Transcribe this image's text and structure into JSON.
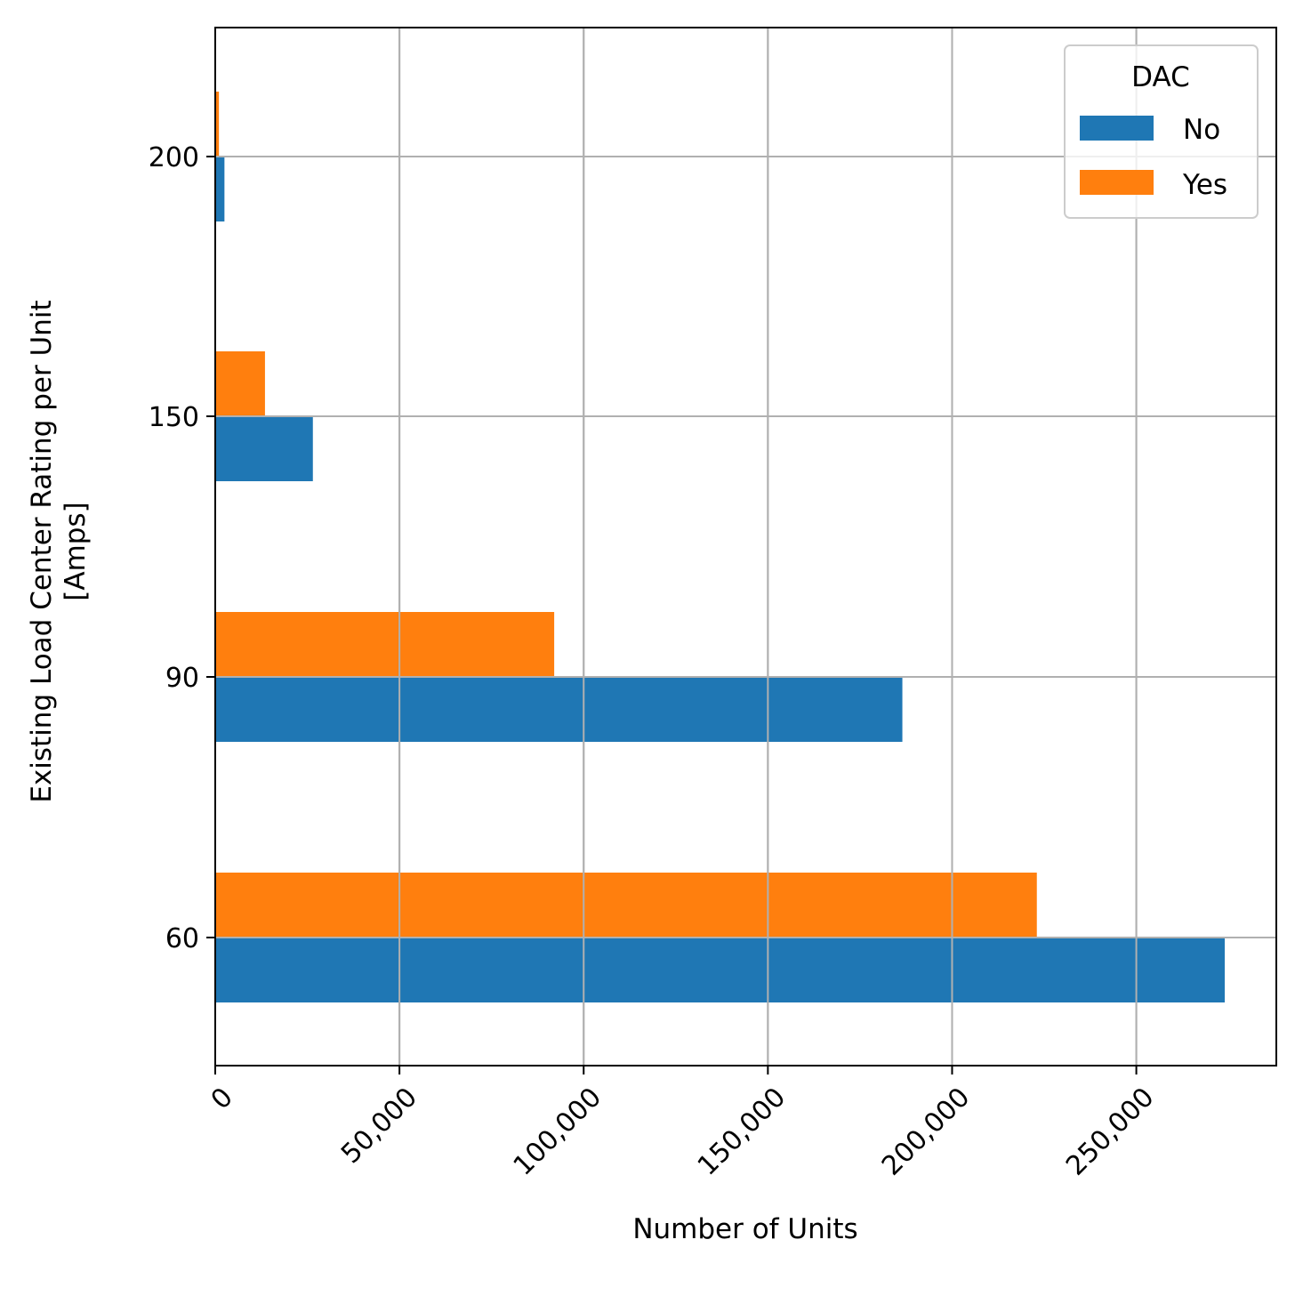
{
  "chart_data": {
    "type": "bar",
    "orientation": "horizontal",
    "categories": [
      "60",
      "90",
      "150",
      "200"
    ],
    "series": [
      {
        "name": "No",
        "color": "#1f77b4",
        "values": [
          274000,
          186500,
          26500,
          2500
        ]
      },
      {
        "name": "Yes",
        "color": "#ff7f0e",
        "values": [
          223000,
          92000,
          13500,
          1000
        ]
      }
    ],
    "xlabel": "Number of Units",
    "ylabel": [
      "Existing Load Center Rating per Unit",
      "[Amps]"
    ],
    "xlim": [
      0,
      288000
    ],
    "xticks": [
      0,
      50000,
      100000,
      150000,
      200000,
      250000
    ],
    "xtick_labels": [
      "0",
      "50,000",
      "100,000",
      "150,000",
      "200,000",
      "250,000"
    ],
    "legend": {
      "title": "DAC",
      "position": "top-right",
      "entries": [
        "No",
        "Yes"
      ]
    },
    "grid": true
  }
}
